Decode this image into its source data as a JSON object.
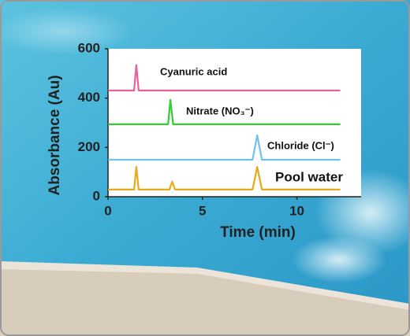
{
  "chart_data": {
    "type": "line",
    "x_label": "Time (min)",
    "y_label": "Absorbance (Au)",
    "xlim": [
      0,
      13.4
    ],
    "xticks": [
      0,
      5,
      10
    ],
    "ylim": [
      0,
      600
    ],
    "yticks": [
      0,
      200,
      400,
      600
    ],
    "series": [
      {
        "name": "Cyanuric acid",
        "color": "#ea5f9c",
        "x": [
          0,
          1.38,
          1.5,
          1.62,
          12.3
        ],
        "values": [
          431,
          431,
          534,
          431,
          431
        ]
      },
      {
        "name": "Nitrate (NO₃⁻)",
        "color": "#33cc33",
        "x": [
          0,
          3.18,
          3.3,
          3.45,
          12.3
        ],
        "values": [
          294,
          294,
          393,
          294,
          294
        ]
      },
      {
        "name": "Chloride (Cl⁻)",
        "color": "#6fc3ea",
        "x": [
          0,
          7.65,
          7.9,
          8.15,
          12.3
        ],
        "values": [
          150,
          150,
          249,
          150,
          150
        ]
      },
      {
        "name": "Pool water",
        "color": "#e8aa1a",
        "x": [
          0,
          1.38,
          1.5,
          1.62,
          3.25,
          3.4,
          3.55,
          7.65,
          7.9,
          8.15,
          12.3
        ],
        "values": [
          29,
          29,
          121,
          29,
          29,
          61,
          29,
          29,
          121,
          29,
          29
        ]
      }
    ]
  }
}
